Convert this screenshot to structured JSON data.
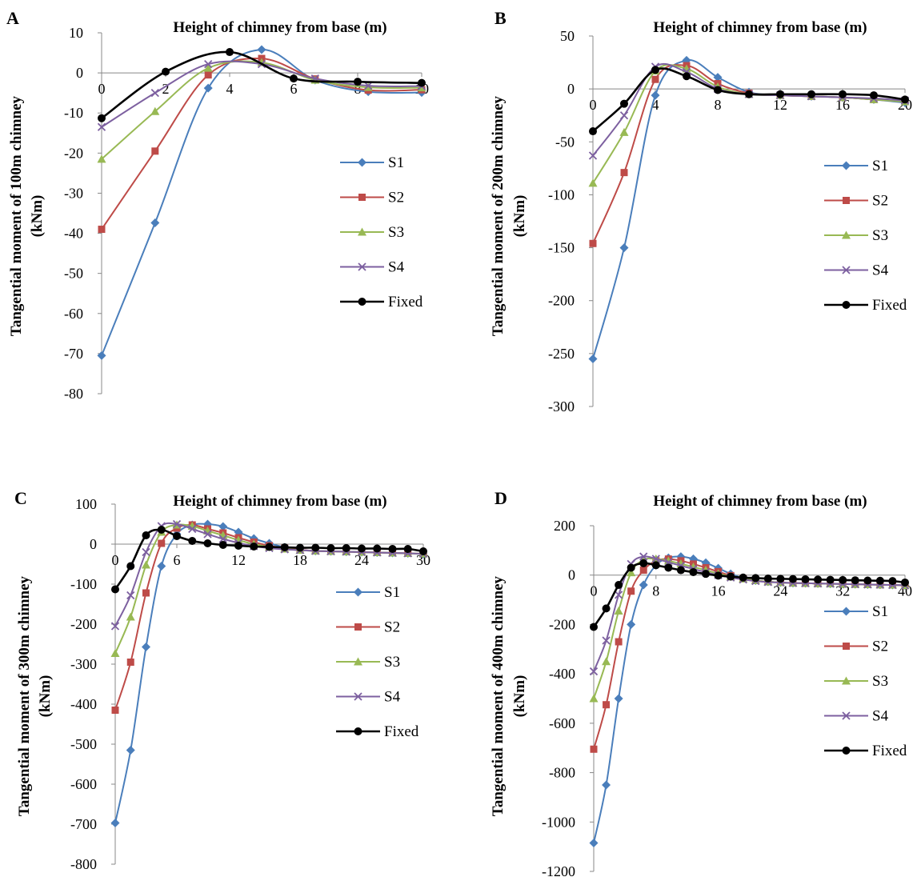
{
  "series_styles": [
    {
      "name": "S1",
      "color": "#4a7ebb",
      "marker": "diamond"
    },
    {
      "name": "S2",
      "color": "#be4b48",
      "marker": "square"
    },
    {
      "name": "S3",
      "color": "#98b954",
      "marker": "triangle"
    },
    {
      "name": "S4",
      "color": "#7d60a0",
      "marker": "x"
    },
    {
      "name": "Fixed",
      "color": "#000000",
      "marker": "circle"
    }
  ],
  "chart_data": [
    {
      "panel": "A",
      "type": "line",
      "title": "Height of chimney from base (m)",
      "ylabel_line1": "Tangential moment of 100m chimney",
      "ylabel_line2": "(kNm)",
      "xlim": [
        0,
        10
      ],
      "ylim": [
        -80,
        10
      ],
      "xticks": [
        0,
        2,
        4,
        6,
        8,
        10
      ],
      "yticks": [
        10,
        0,
        -10,
        -20,
        -30,
        -40,
        -50,
        -60,
        -70,
        -80
      ],
      "series": [
        {
          "name": "S1",
          "x": [
            0,
            1.67,
            3.33,
            5,
            6.67,
            8.33,
            10
          ],
          "values": [
            -70.5,
            -37.4,
            -3.8,
            5.8,
            -1.8,
            -4.7,
            -4.9
          ]
        },
        {
          "name": "S2",
          "x": [
            0,
            1.67,
            3.33,
            5,
            6.67,
            8.33,
            10
          ],
          "values": [
            -39,
            -19.5,
            -0.5,
            3.6,
            -1.5,
            -4.3,
            -4.2
          ]
        },
        {
          "name": "S3",
          "x": [
            0,
            1.67,
            3.33,
            5,
            6.67,
            8.33,
            10
          ],
          "values": [
            -21.5,
            -9.6,
            1.2,
            2.6,
            -1.8,
            -3.6,
            -3.7
          ]
        },
        {
          "name": "S4",
          "x": [
            0,
            1.67,
            3.33,
            5,
            6.67,
            8.33,
            10
          ],
          "values": [
            -13.5,
            -5,
            2.2,
            2.2,
            -1.4,
            -3.2,
            -3.3
          ]
        },
        {
          "name": "Fixed",
          "x": [
            0,
            2,
            4,
            6,
            8,
            10
          ],
          "values": [
            -11.3,
            0.3,
            5.2,
            -1.4,
            -2.2,
            -2.5
          ]
        }
      ]
    },
    {
      "panel": "B",
      "type": "line",
      "title": "Height of chimney from base (m)",
      "ylabel_line1": "Tangential moment of 200m chimney",
      "ylabel_line2": "(kNm)",
      "xlim": [
        0,
        20
      ],
      "ylim": [
        -300,
        50
      ],
      "xticks": [
        0,
        4,
        8,
        12,
        16,
        20
      ],
      "yticks": [
        50,
        0,
        -50,
        -100,
        -150,
        -200,
        -250,
        -300
      ],
      "series": [
        {
          "name": "S1",
          "x": [
            0,
            2,
            4,
            6,
            8,
            10,
            12,
            14,
            16,
            18,
            20
          ],
          "values": [
            -255,
            -150,
            -6,
            27,
            11,
            -3,
            -6,
            -7,
            -8,
            -10,
            -13
          ]
        },
        {
          "name": "S2",
          "x": [
            0,
            2,
            4,
            6,
            8,
            10,
            12,
            14,
            16,
            18,
            20
          ],
          "values": [
            -146,
            -79,
            9,
            22,
            5,
            -4,
            -6,
            -7,
            -8,
            -10,
            -12
          ]
        },
        {
          "name": "S3",
          "x": [
            0,
            2,
            4,
            6,
            8,
            10,
            12,
            14,
            16,
            18,
            20
          ],
          "values": [
            -89,
            -41,
            17,
            19,
            2,
            -5,
            -6,
            -7,
            -8,
            -10,
            -12
          ]
        },
        {
          "name": "S4",
          "x": [
            0,
            2,
            4,
            6,
            8,
            10,
            12,
            14,
            16,
            18,
            20
          ],
          "values": [
            -63,
            -25,
            21,
            16,
            0,
            -5,
            -6,
            -7,
            -8,
            -9,
            -11
          ]
        },
        {
          "name": "Fixed",
          "x": [
            0,
            2,
            4,
            6,
            8,
            10,
            12,
            14,
            16,
            18,
            20
          ],
          "values": [
            -40,
            -14,
            18,
            12,
            -1,
            -5,
            -5,
            -5,
            -5,
            -6,
            -10
          ]
        }
      ]
    },
    {
      "panel": "C",
      "type": "line",
      "title": "Height of chimney from base (m)",
      "ylabel_line1": "Tangential moment of 300m chimney",
      "ylabel_line2": "(kNm)",
      "xlim": [
        0,
        30
      ],
      "ylim": [
        -800,
        100
      ],
      "xticks": [
        0,
        6,
        12,
        18,
        24,
        30
      ],
      "yticks": [
        100,
        0,
        -100,
        -200,
        -300,
        -400,
        -500,
        -600,
        -700,
        -800
      ],
      "series": [
        {
          "name": "S1",
          "x": [
            0,
            1.5,
            3,
            4.5,
            6,
            7.5,
            9,
            10.5,
            12,
            13.5,
            15,
            16.5,
            18,
            19.5,
            21,
            22.5,
            24,
            25.5,
            27,
            28.5,
            30
          ],
          "values": [
            -697,
            -515,
            -257,
            -55,
            25,
            48,
            50,
            44,
            30,
            14,
            2,
            -8,
            -14,
            -17,
            -18,
            -19,
            -20,
            -21,
            -22,
            -23,
            -25
          ]
        },
        {
          "name": "S2",
          "x": [
            0,
            1.5,
            3,
            4.5,
            6,
            7.5,
            9,
            10.5,
            12,
            13.5,
            15,
            16.5,
            18,
            19.5,
            21,
            22.5,
            24,
            25.5,
            27,
            28.5,
            30
          ],
          "values": [
            -415,
            -295,
            -122,
            2,
            40,
            48,
            38,
            28,
            16,
            5,
            -4,
            -10,
            -14,
            -17,
            -18,
            -19,
            -20,
            -21,
            -22,
            -23,
            -24
          ]
        },
        {
          "name": "S3",
          "x": [
            0,
            1.5,
            3,
            4.5,
            6,
            7.5,
            9,
            10.5,
            12,
            13.5,
            15,
            16.5,
            18,
            19.5,
            21,
            22.5,
            24,
            25.5,
            27,
            28.5,
            30
          ],
          "values": [
            -273,
            -182,
            -52,
            30,
            48,
            45,
            33,
            22,
            10,
            0,
            -7,
            -12,
            -15,
            -17,
            -18,
            -19,
            -20,
            -21,
            -22,
            -23,
            -24
          ]
        },
        {
          "name": "S4",
          "x": [
            0,
            1.5,
            3,
            4.5,
            6,
            7.5,
            9,
            10.5,
            12,
            13.5,
            15,
            16.5,
            18,
            19.5,
            21,
            22.5,
            24,
            25.5,
            27,
            28.5,
            30
          ],
          "values": [
            -205,
            -128,
            -20,
            45,
            50,
            38,
            25,
            13,
            3,
            -5,
            -10,
            -13,
            -15,
            -17,
            -18,
            -19,
            -20,
            -21,
            -22,
            -23,
            -24
          ]
        },
        {
          "name": "Fixed",
          "x": [
            0,
            1.5,
            3,
            4.5,
            6,
            7.5,
            9,
            10.5,
            12,
            13.5,
            15,
            16.5,
            18,
            19.5,
            21,
            22.5,
            24,
            25.5,
            27,
            28.5,
            30
          ],
          "values": [
            -113,
            -55,
            22,
            36,
            20,
            8,
            2,
            -2,
            -4,
            -6,
            -7,
            -8,
            -9,
            -9,
            -10,
            -10,
            -11,
            -11,
            -12,
            -12,
            -18
          ]
        }
      ]
    },
    {
      "panel": "D",
      "type": "line",
      "title": "Height of chimney from base (m)",
      "ylabel_line1": "Tangential moment of 400m chimney",
      "ylabel_line2": "(kNm)",
      "xlim": [
        0,
        40
      ],
      "ylim": [
        -1200,
        200
      ],
      "xticks": [
        0,
        8,
        16,
        24,
        32,
        40
      ],
      "yticks": [
        200,
        0,
        -200,
        -400,
        -600,
        -800,
        -1000,
        -1200
      ],
      "series": [
        {
          "name": "S1",
          "x": [
            0,
            1.6,
            3.2,
            4.8,
            6.4,
            8,
            9.6,
            11.2,
            12.8,
            14.4,
            16,
            17.6,
            19.2,
            20.8,
            22.4,
            24,
            25.6,
            27.2,
            28.8,
            30.4,
            32,
            33.6,
            35.2,
            36.8,
            38.4,
            40
          ],
          "values": [
            -1085,
            -850,
            -500,
            -200,
            -40,
            40,
            70,
            75,
            66,
            50,
            28,
            5,
            -12,
            -22,
            -27,
            -30,
            -32,
            -33,
            -34,
            -35,
            -36,
            -37,
            -38,
            -39,
            -40,
            -42
          ]
        },
        {
          "name": "S2",
          "x": [
            0,
            1.6,
            3.2,
            4.8,
            6.4,
            8,
            9.6,
            11.2,
            12.8,
            14.4,
            16,
            17.6,
            19.2,
            20.8,
            22.4,
            24,
            25.6,
            27.2,
            28.8,
            30.4,
            32,
            33.6,
            35.2,
            36.8,
            38.4,
            40
          ],
          "values": [
            -705,
            -525,
            -270,
            -65,
            20,
            58,
            65,
            58,
            45,
            30,
            14,
            -2,
            -14,
            -22,
            -27,
            -30,
            -32,
            -33,
            -34,
            -35,
            -36,
            -37,
            -38,
            -39,
            -40,
            -42
          ]
        },
        {
          "name": "S3",
          "x": [
            0,
            1.6,
            3.2,
            4.8,
            6.4,
            8,
            9.6,
            11.2,
            12.8,
            14.4,
            16,
            17.6,
            19.2,
            20.8,
            22.4,
            24,
            25.6,
            27.2,
            28.8,
            30.4,
            32,
            33.6,
            35.2,
            36.8,
            38.4,
            40
          ],
          "values": [
            -500,
            -350,
            -145,
            10,
            62,
            66,
            58,
            46,
            33,
            20,
            6,
            -6,
            -15,
            -22,
            -27,
            -30,
            -32,
            -33,
            -34,
            -35,
            -36,
            -37,
            -38,
            -39,
            -40,
            -42
          ]
        },
        {
          "name": "S4",
          "x": [
            0,
            1.6,
            3.2,
            4.8,
            6.4,
            8,
            9.6,
            11.2,
            12.8,
            14.4,
            16,
            17.6,
            19.2,
            20.8,
            22.4,
            24,
            25.6,
            27.2,
            28.8,
            30.4,
            32,
            33.6,
            35.2,
            36.8,
            38.4,
            40
          ],
          "values": [
            -390,
            -265,
            -80,
            45,
            75,
            66,
            52,
            38,
            25,
            12,
            0,
            -10,
            -18,
            -24,
            -28,
            -30,
            -32,
            -33,
            -34,
            -35,
            -36,
            -37,
            -38,
            -39,
            -40,
            -42
          ]
        },
        {
          "name": "Fixed",
          "x": [
            0,
            1.6,
            3.2,
            4.8,
            6.4,
            8,
            9.6,
            11.2,
            12.8,
            14.4,
            16,
            17.6,
            19.2,
            20.8,
            22.4,
            24,
            25.6,
            27.2,
            28.8,
            30.4,
            32,
            33.6,
            35.2,
            36.8,
            38.4,
            40
          ],
          "values": [
            -210,
            -135,
            -40,
            30,
            48,
            40,
            30,
            20,
            12,
            5,
            -2,
            -6,
            -10,
            -12,
            -14,
            -15,
            -16,
            -17,
            -18,
            -19,
            -20,
            -21,
            -22,
            -23,
            -24,
            -30
          ]
        }
      ]
    }
  ]
}
